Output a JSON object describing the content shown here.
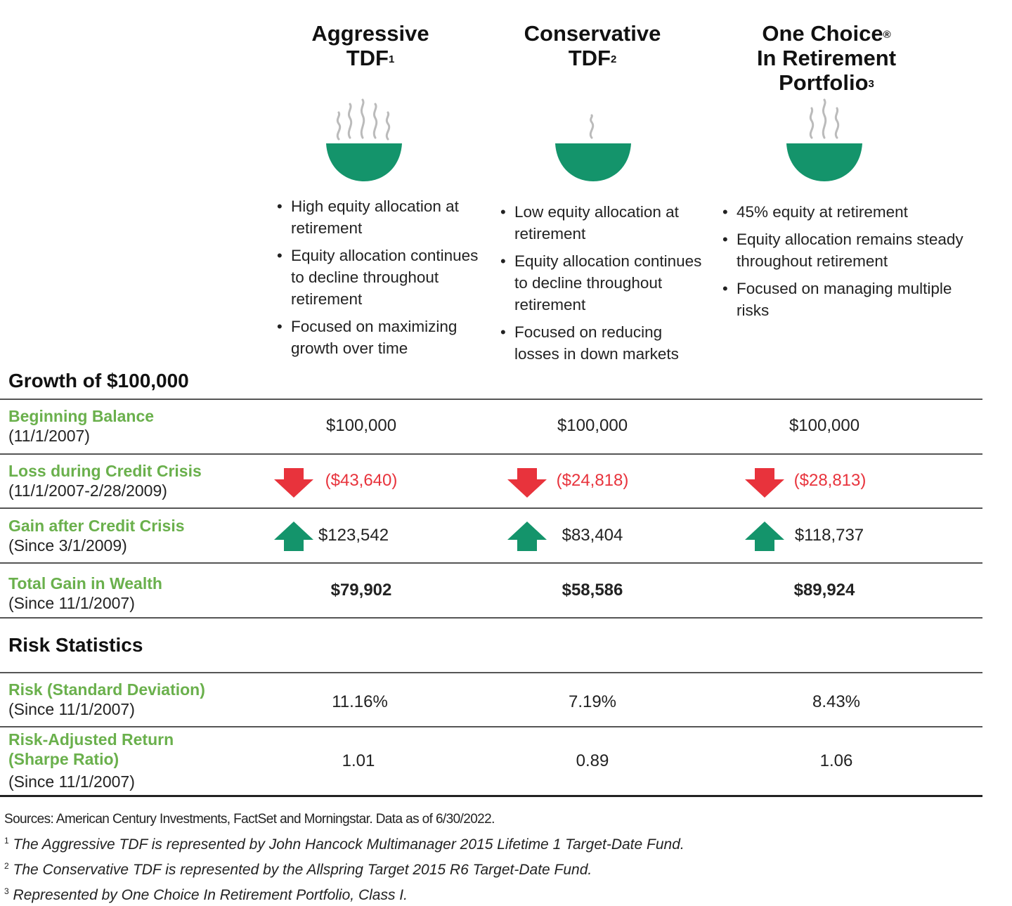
{
  "colors": {
    "green": "#6ab04c",
    "bowl_green": "#14946b",
    "red": "#e8333c",
    "steam": "#bbbbbb"
  },
  "columns": [
    {
      "title_lines": [
        "Aggressive",
        "TDF"
      ],
      "sup": "1",
      "bowl_icon": "bowl-steaming-high-icon",
      "bullets": [
        "High equity allocation at retirement",
        "Equity allocation continues to decline throughout retirement",
        "Focused on maximizing growth over time"
      ]
    },
    {
      "title_lines": [
        "Conservative",
        "TDF"
      ],
      "sup": "2",
      "bowl_icon": "bowl-steaming-low-icon",
      "bullets": [
        "Low equity allocation at retirement",
        "Equity allocation continues to decline throughout retirement",
        "Focused on reducing losses in down markets"
      ]
    },
    {
      "title_lines": [
        "One Choice",
        "In Retirement",
        "Portfolio"
      ],
      "sup_first": "®",
      "sup": "3",
      "bowl_icon": "bowl-steaming-medium-icon",
      "bullets": [
        "45% equity at retirement",
        "Equity allocation remains steady throughout retirement",
        "Focused on managing multiple risks"
      ]
    }
  ],
  "sections": {
    "growth_title": "Growth of $100,000",
    "risk_title": "Risk Statistics"
  },
  "chart_data": {
    "type": "table",
    "columns": [
      "Aggressive TDF",
      "Conservative TDF",
      "One Choice In Retirement Portfolio"
    ],
    "rows": [
      {
        "label": "Beginning Balance",
        "sub": "(11/1/2007)",
        "values": [
          "$100,000",
          "$100,000",
          "$100,000"
        ],
        "style": "plain",
        "arrow": "none"
      },
      {
        "label": "Loss during Credit Crisis",
        "sub": "(11/1/2007-2/28/2009)",
        "values": [
          "($43,640)",
          "($24,818)",
          "($28,813)"
        ],
        "style": "red",
        "arrow": "down"
      },
      {
        "label": "Gain after Credit Crisis",
        "sub": "(Since 3/1/2009)",
        "values": [
          "$123,542",
          "$83,404",
          "$118,737"
        ],
        "style": "plain",
        "arrow": "up"
      },
      {
        "label": "Total Gain in Wealth",
        "sub": "(Since 11/1/2007)",
        "values": [
          "$79,902",
          "$58,586",
          "$89,924"
        ],
        "style": "bold",
        "arrow": "none"
      },
      {
        "label": "Risk (Standard Deviation)",
        "sub": "(Since 11/1/2007)",
        "values": [
          "11.16%",
          "7.19%",
          "8.43%"
        ],
        "style": "plain",
        "arrow": "none"
      },
      {
        "label": "Risk-Adjusted Return (Sharpe Ratio)",
        "label_lines": [
          "Risk-Adjusted Return",
          "(Sharpe Ratio)"
        ],
        "sub": "(Since 11/1/2007)",
        "values": [
          "1.01",
          "0.89",
          "1.06"
        ],
        "style": "plain",
        "arrow": "none"
      }
    ]
  },
  "footnotes": {
    "sources": "Sources: American Century Investments, FactSet and Morningstar. Data as of 6/30/2022.",
    "notes": [
      {
        "num": "1",
        "text": "The Aggressive TDF is represented by John Hancock Multimanager 2015 Lifetime 1 Target-Date Fund."
      },
      {
        "num": "2",
        "text": "The Conservative TDF is represented by the Allspring Target 2015 R6 Target-Date Fund."
      },
      {
        "num": "3",
        "text": "Represented by One Choice In Retirement Portfolio, Class I."
      }
    ]
  }
}
